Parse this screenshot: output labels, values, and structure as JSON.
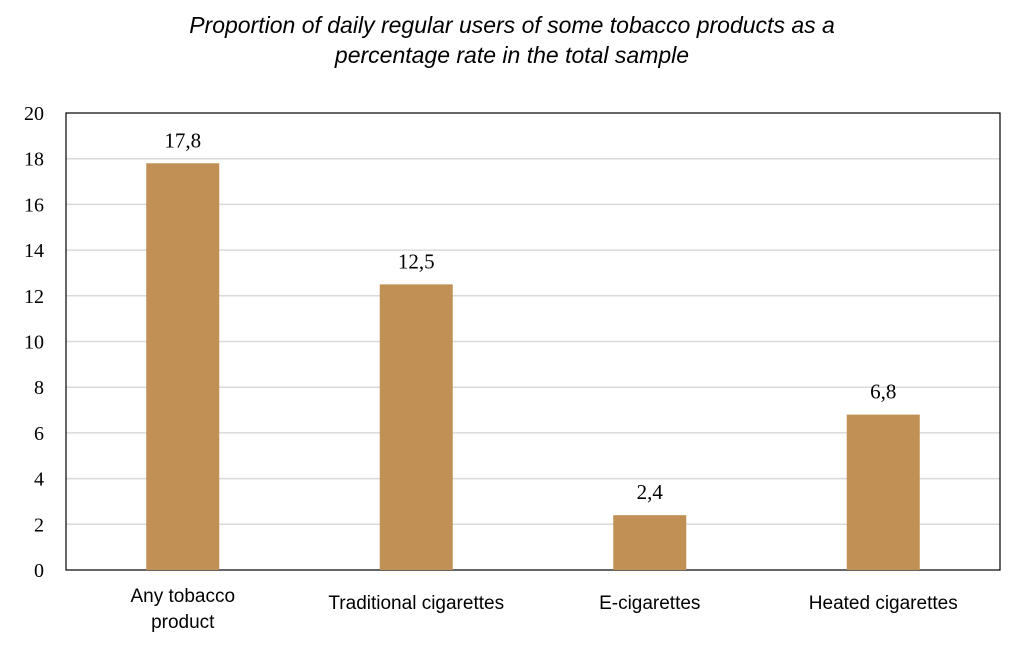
{
  "chart_data": {
    "type": "bar",
    "title_lines": [
      "Proportion of daily regular users of some tobacco products as a",
      "percentage rate in the total sample"
    ],
    "categories": [
      [
        "Any tobacco",
        "product"
      ],
      [
        "Traditional cigarettes"
      ],
      [
        "E-cigarettes"
      ],
      [
        "Heated cigarettes"
      ]
    ],
    "values": [
      17.8,
      12.5,
      2.4,
      6.8
    ],
    "value_labels": [
      "17,8",
      "12,5",
      "2,4",
      "6,8"
    ],
    "ylim": [
      0,
      20
    ],
    "yticks": [
      "0",
      "2",
      "4",
      "6",
      "8",
      "10",
      "12",
      "14",
      "16",
      "18",
      "20"
    ],
    "grid": true,
    "bar_color": "#C19055",
    "grid_color": "#D9D9D9",
    "legend": "none"
  }
}
